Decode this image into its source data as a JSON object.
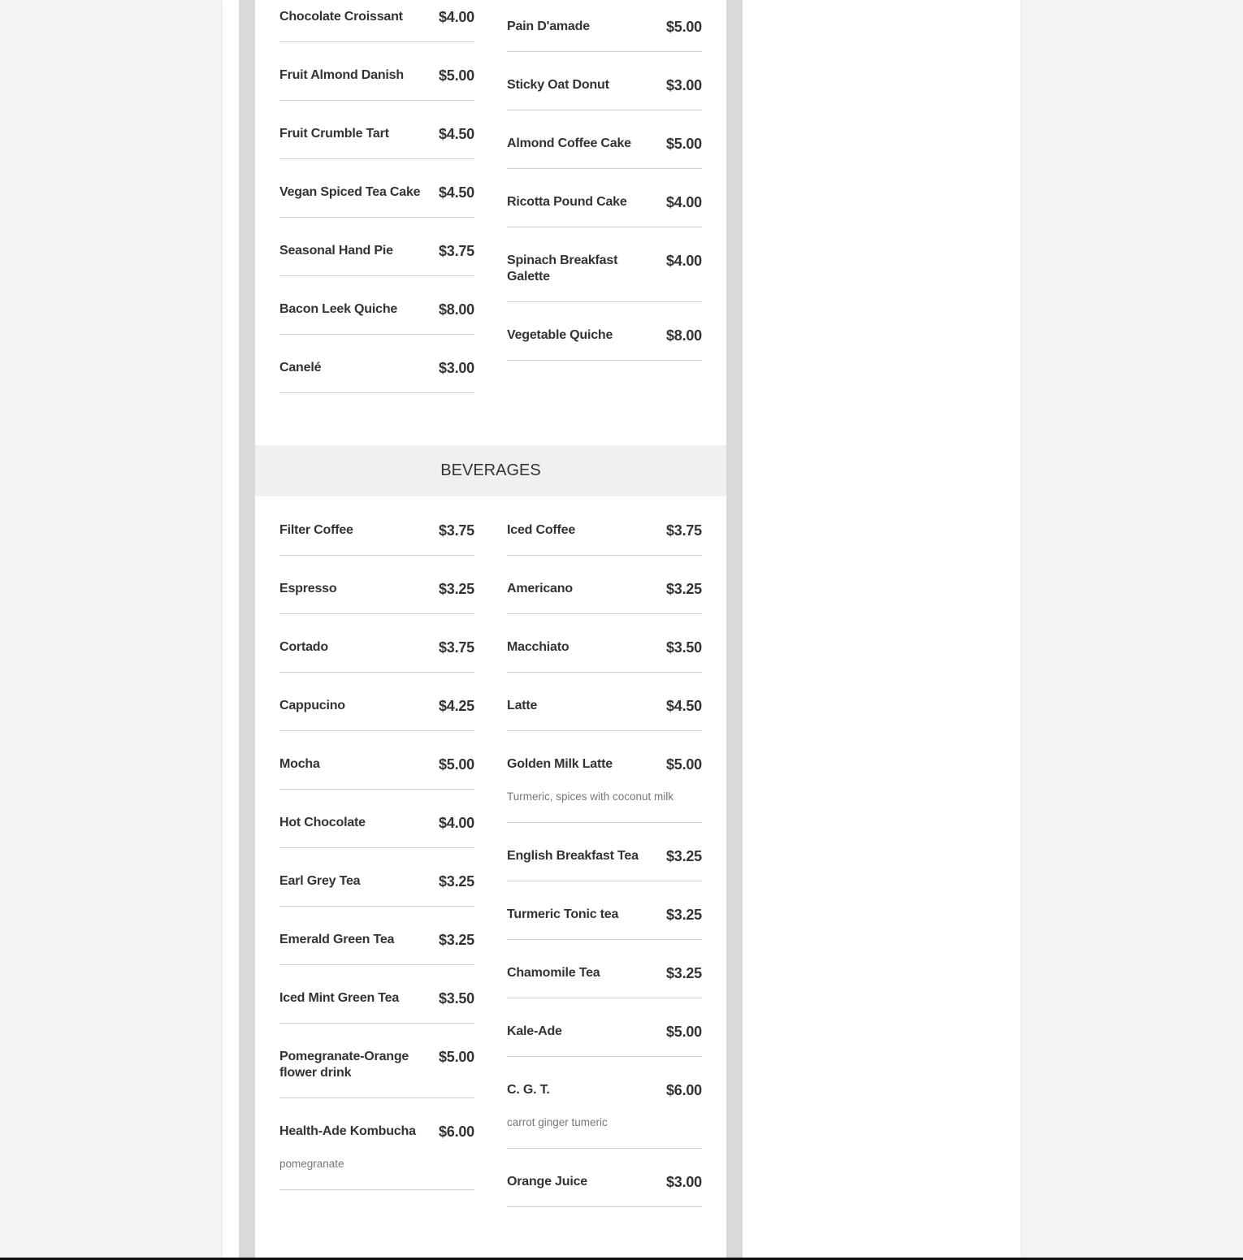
{
  "pastries": {
    "left": [
      {
        "name": "Chocolate Croissant",
        "price": "$4.00"
      },
      {
        "name": "Fruit Almond Danish",
        "price": "$5.00"
      },
      {
        "name": "Fruit Crumble Tart",
        "price": "$4.50"
      },
      {
        "name": "Vegan Spiced Tea Cake",
        "price": "$4.50"
      },
      {
        "name": "Seasonal Hand Pie",
        "price": "$3.75"
      },
      {
        "name": "Bacon Leek Quiche",
        "price": "$8.00"
      },
      {
        "name": "Canelé",
        "price": "$3.00"
      }
    ],
    "right": [
      {
        "name": "Pain D'amade",
        "price": "$5.00"
      },
      {
        "name": "Sticky Oat Donut",
        "price": "$3.00"
      },
      {
        "name": "Almond Coffee Cake",
        "price": "$5.00"
      },
      {
        "name": "Ricotta Pound Cake",
        "price": "$4.00"
      },
      {
        "name": "Spinach Breakfast Galette",
        "price": "$4.00"
      },
      {
        "name": "Vegetable Quiche",
        "price": "$8.00"
      }
    ]
  },
  "beverages": {
    "title": "BEVERAGES",
    "left": [
      {
        "name": "Filter Coffee",
        "price": "$3.75"
      },
      {
        "name": "Espresso",
        "price": "$3.25"
      },
      {
        "name": "Cortado",
        "price": "$3.75"
      },
      {
        "name": "Cappucino",
        "price": "$4.25"
      },
      {
        "name": "Mocha",
        "price": "$5.00"
      },
      {
        "name": "Hot Chocolate",
        "price": "$4.00"
      },
      {
        "name": "Earl Grey Tea",
        "price": "$3.25"
      },
      {
        "name": "Emerald Green Tea",
        "price": "$3.25"
      },
      {
        "name": "Iced Mint Green Tea",
        "price": "$3.50"
      },
      {
        "name": "Pomegranate-Orange flower drink",
        "price": "$5.00"
      },
      {
        "name": "Health-Ade Kombucha",
        "price": "$6.00",
        "desc": "pomegranate"
      }
    ],
    "right": [
      {
        "name": "Iced Coffee",
        "price": "$3.75"
      },
      {
        "name": "Americano",
        "price": "$3.25"
      },
      {
        "name": "Macchiato",
        "price": "$3.50"
      },
      {
        "name": "Latte",
        "price": "$4.50"
      },
      {
        "name": "Golden Milk Latte",
        "price": "$5.00",
        "desc": "Turmeric, spices with coconut milk"
      },
      {
        "name": "English Breakfast Tea",
        "price": "$3.25"
      },
      {
        "name": "Turmeric Tonic tea",
        "price": "$3.25"
      },
      {
        "name": "Chamomile Tea",
        "price": "$3.25"
      },
      {
        "name": "Kale-Ade",
        "price": "$5.00"
      },
      {
        "name": "C. G. T.",
        "price": "$6.00",
        "desc": "carrot ginger tumeric"
      },
      {
        "name": "Orange Juice",
        "price": "$3.00"
      }
    ]
  }
}
